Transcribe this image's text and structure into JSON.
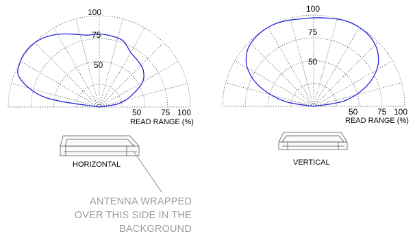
{
  "colors": {
    "pattern": "#2323d6",
    "grid": "#555555",
    "annotation": "#9c9c9c"
  },
  "charts": [
    {
      "id": "horizontal",
      "caption": "HORIZONTAL",
      "axis_title": "READ RANGE (%)",
      "radial_tick_labels": [
        "50",
        "75",
        "100"
      ],
      "vertical_tick_labels": [
        "100",
        "75",
        "50"
      ],
      "pattern_pct": [
        [
          0,
          0
        ],
        [
          10,
          22
        ],
        [
          20,
          38
        ],
        [
          30,
          55
        ],
        [
          40,
          63
        ],
        [
          50,
          66
        ],
        [
          60,
          69
        ],
        [
          70,
          77
        ],
        [
          80,
          79
        ],
        [
          90,
          80
        ],
        [
          100,
          80
        ],
        [
          110,
          85
        ],
        [
          120,
          92
        ],
        [
          130,
          98
        ],
        [
          140,
          101
        ],
        [
          150,
          100
        ],
        [
          160,
          93
        ],
        [
          170,
          60
        ],
        [
          180,
          0
        ]
      ]
    },
    {
      "id": "vertical",
      "caption": "VERTICAL",
      "axis_title": "READ RANGE (%)",
      "radial_tick_labels": [
        "50",
        "75",
        "100"
      ],
      "vertical_tick_labels": [
        "100",
        "75",
        "50"
      ],
      "pattern_pct": [
        [
          0,
          0
        ],
        [
          10,
          34
        ],
        [
          20,
          60
        ],
        [
          30,
          80
        ],
        [
          40,
          92
        ],
        [
          50,
          98
        ],
        [
          60,
          100
        ],
        [
          70,
          100
        ],
        [
          80,
          98
        ],
        [
          90,
          97
        ],
        [
          100,
          97
        ],
        [
          110,
          99
        ],
        [
          120,
          100
        ],
        [
          130,
          99
        ],
        [
          140,
          95
        ],
        [
          150,
          84
        ],
        [
          160,
          63
        ],
        [
          170,
          33
        ],
        [
          180,
          0
        ]
      ]
    }
  ],
  "annotation": {
    "lines": [
      "ANTENNA WRAPPED",
      "OVER THIS SIDE IN THE",
      "BACKGROUND"
    ]
  }
}
